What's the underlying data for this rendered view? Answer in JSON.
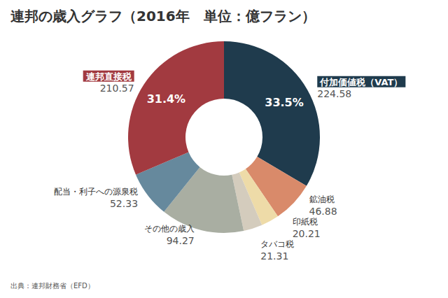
{
  "chart_data": {
    "type": "pie",
    "title": "連邦の歳入グラフ（2016年　単位：億フラン）",
    "categories": [
      "付加価値税（VAT）",
      "鉱油税",
      "印紙税",
      "タバコ税",
      "その他の歳入",
      "配当・利子への源泉税",
      "連邦直接税"
    ],
    "values": [
      224.58,
      46.88,
      20.21,
      21.31,
      94.27,
      52.33,
      210.57
    ],
    "colors": [
      "#1f3b4d",
      "#d98a6a",
      "#eedba8",
      "#d4ccbd",
      "#a9aea2",
      "#66899d",
      "#a23a40"
    ],
    "percentages": [
      33.5,
      null,
      null,
      null,
      null,
      null,
      31.4
    ],
    "percentage_labels": [
      "33.5%",
      null,
      null,
      null,
      null,
      null,
      "31.4%"
    ],
    "data_labels": true,
    "source": "出典：連邦財務省（EFD）"
  }
}
